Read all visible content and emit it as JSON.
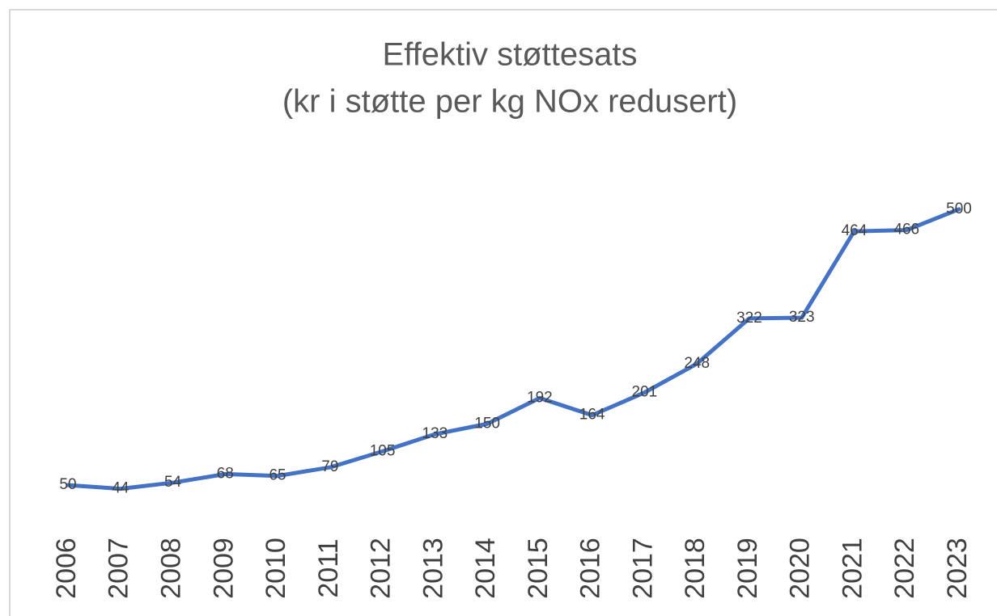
{
  "chart_data": {
    "type": "line",
    "title": "Effektiv støttesats",
    "subtitle": "(kr i støtte per kg NOx redusert)",
    "categories": [
      "2006",
      "2007",
      "2008",
      "2009",
      "2010",
      "2011",
      "2012",
      "2013",
      "2014",
      "2015",
      "2016",
      "2017",
      "2018",
      "2019",
      "2020",
      "2021",
      "2022",
      "2023"
    ],
    "series": [
      {
        "name": "Effektiv støttesats",
        "color": "#4472c4",
        "values": [
          50,
          44,
          54,
          68,
          65,
          79,
          105,
          133,
          150,
          192,
          164,
          201,
          248,
          322,
          323,
          464,
          466,
          500
        ]
      }
    ],
    "ylim": [
      0,
      600
    ]
  }
}
